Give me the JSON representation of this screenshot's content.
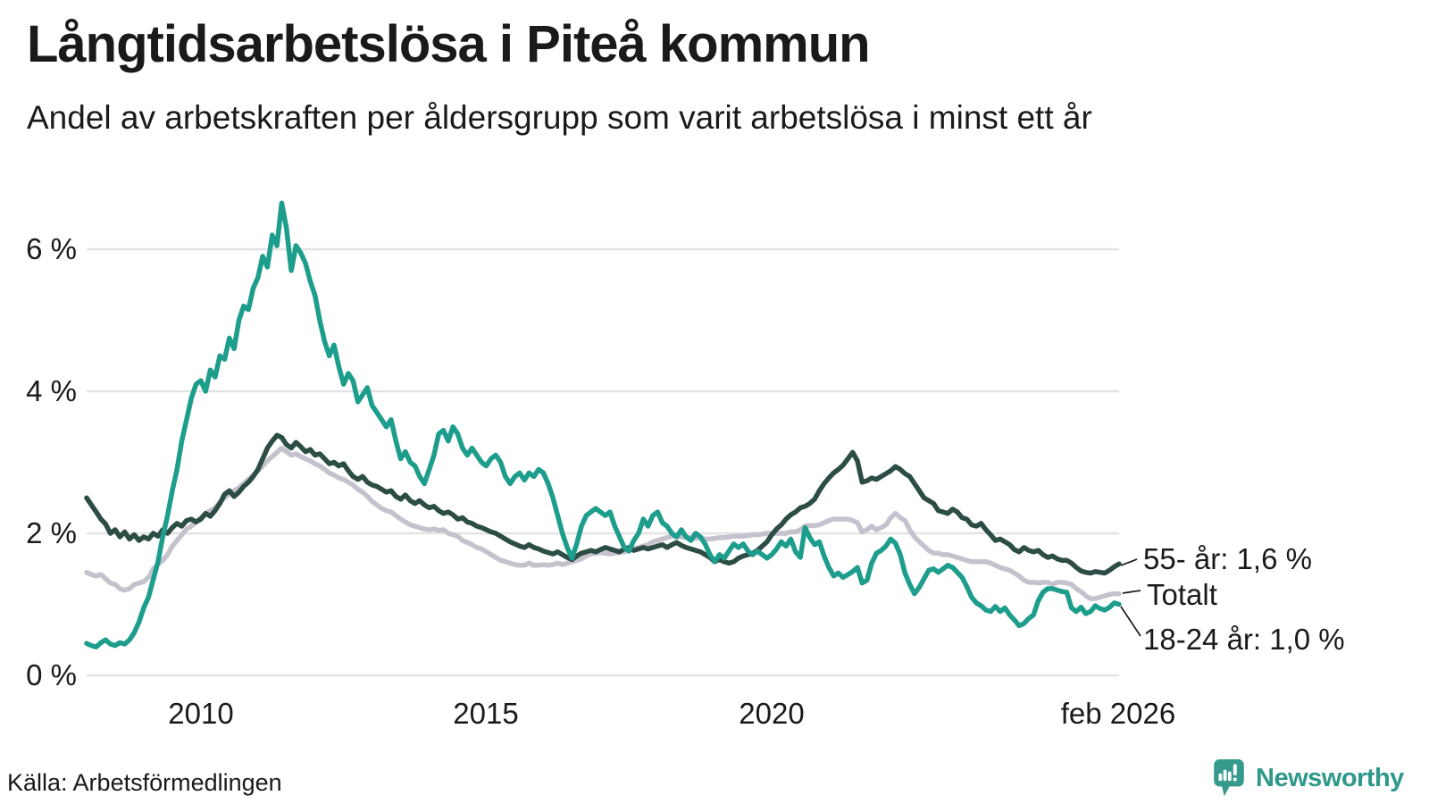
{
  "header": {
    "title": "Långtidsarbetslösa i Piteå kommun",
    "subtitle": "Andel av arbetskraften per åldersgrupp som varit arbetslösa i minst ett år"
  },
  "footer": {
    "source": "Källa: Arbetsförmedlingen",
    "brand": "Newsworthy"
  },
  "colors": {
    "teal": "#1d9d8b",
    "dark_green": "#2c4d45",
    "gray": "#c5c2ce",
    "gridline": "#e3e3e3",
    "text": "#1a1a1a",
    "brand_teal": "#2e988a"
  },
  "chart_data": {
    "type": "line",
    "title": "Långtidsarbetslösa i Piteå kommun",
    "subtitle": "Andel av arbetskraften per åldersgrupp som varit arbetslösa i minst ett år",
    "x_domain": [
      2008.0,
      2026.083
    ],
    "x_frequency": "monthly",
    "ylim": [
      0,
      6.9
    ],
    "grid": "horizontal",
    "y_ticks": [
      {
        "label": "0 %",
        "value": 0
      },
      {
        "label": "2 %",
        "value": 2
      },
      {
        "label": "4 %",
        "value": 4
      },
      {
        "label": "6 %",
        "value": 6
      }
    ],
    "x_ticks": [
      {
        "label": "2010",
        "t": 2010.0
      },
      {
        "label": "2015",
        "t": 2015.0
      },
      {
        "label": "2020",
        "t": 2020.0
      },
      {
        "label": "feb 2026",
        "t": 2026.083
      }
    ],
    "series": [
      {
        "id": "totalt",
        "name": "Totalt",
        "end_label": "Totalt",
        "end_value": 1.15,
        "color": "#c5c2ce",
        "values": [
          1.45,
          1.42,
          1.4,
          1.42,
          1.36,
          1.3,
          1.28,
          1.22,
          1.2,
          1.22,
          1.28,
          1.3,
          1.32,
          1.38,
          1.5,
          1.56,
          1.62,
          1.7,
          1.82,
          1.9,
          1.98,
          2.06,
          2.1,
          2.16,
          2.22,
          2.28,
          2.32,
          2.36,
          2.44,
          2.5,
          2.55,
          2.6,
          2.64,
          2.7,
          2.76,
          2.82,
          2.88,
          2.95,
          3.02,
          3.08,
          3.14,
          3.2,
          3.15,
          3.1,
          3.12,
          3.08,
          3.05,
          3.02,
          2.98,
          2.95,
          2.9,
          2.85,
          2.82,
          2.78,
          2.76,
          2.72,
          2.68,
          2.62,
          2.58,
          2.52,
          2.45,
          2.4,
          2.35,
          2.32,
          2.3,
          2.25,
          2.2,
          2.16,
          2.12,
          2.1,
          2.08,
          2.06,
          2.05,
          2.06,
          2.04,
          2.05,
          2.0,
          1.98,
          1.96,
          1.9,
          1.87,
          1.84,
          1.8,
          1.78,
          1.74,
          1.7,
          1.66,
          1.62,
          1.6,
          1.58,
          1.56,
          1.55,
          1.55,
          1.58,
          1.55,
          1.55,
          1.56,
          1.55,
          1.56,
          1.58,
          1.56,
          1.58,
          1.6,
          1.62,
          1.64,
          1.68,
          1.71,
          1.72,
          1.73,
          1.72,
          1.71,
          1.72,
          1.73,
          1.74,
          1.76,
          1.78,
          1.8,
          1.82,
          1.84,
          1.88,
          1.9,
          1.92,
          1.94,
          1.96,
          1.96,
          1.95,
          1.94,
          1.94,
          1.93,
          1.94,
          1.92,
          1.92,
          1.93,
          1.94,
          1.94,
          1.95,
          1.96,
          1.96,
          1.96,
          1.97,
          1.98,
          1.98,
          1.99,
          2.0,
          2.0,
          2.0,
          2.0,
          2.0,
          2.02,
          2.02,
          2.05,
          2.1,
          2.11,
          2.11,
          2.12,
          2.15,
          2.18,
          2.2,
          2.2,
          2.2,
          2.2,
          2.18,
          2.15,
          2.02,
          2.05,
          2.1,
          2.05,
          2.08,
          2.12,
          2.22,
          2.28,
          2.22,
          2.18,
          2.05,
          1.95,
          1.88,
          1.82,
          1.76,
          1.72,
          1.72,
          1.7,
          1.7,
          1.68,
          1.66,
          1.64,
          1.62,
          1.6,
          1.6,
          1.6,
          1.6,
          1.58,
          1.55,
          1.52,
          1.5,
          1.48,
          1.44,
          1.4,
          1.34,
          1.31,
          1.31,
          1.3,
          1.31,
          1.31,
          1.28,
          1.31,
          1.31,
          1.3,
          1.28,
          1.22,
          1.18,
          1.12,
          1.08,
          1.08,
          1.1,
          1.12,
          1.14,
          1.15,
          1.15
        ]
      },
      {
        "id": "55",
        "name": "55- år",
        "end_label": "55- år: 1,6 %",
        "end_value": 1.6,
        "color": "#2c4d45",
        "values": [
          2.5,
          2.4,
          2.3,
          2.2,
          2.13,
          2.0,
          2.05,
          1.95,
          2.02,
          1.92,
          1.98,
          1.9,
          1.95,
          1.92,
          2.0,
          1.96,
          2.05,
          2.0,
          2.08,
          2.14,
          2.1,
          2.18,
          2.2,
          2.16,
          2.2,
          2.28,
          2.24,
          2.32,
          2.42,
          2.55,
          2.6,
          2.52,
          2.58,
          2.66,
          2.72,
          2.8,
          2.9,
          3.05,
          3.2,
          3.3,
          3.38,
          3.35,
          3.25,
          3.2,
          3.28,
          3.22,
          3.15,
          3.18,
          3.1,
          3.12,
          3.05,
          2.98,
          3.0,
          2.95,
          2.98,
          2.88,
          2.8,
          2.76,
          2.8,
          2.72,
          2.68,
          2.66,
          2.62,
          2.58,
          2.6,
          2.52,
          2.48,
          2.54,
          2.46,
          2.42,
          2.46,
          2.4,
          2.36,
          2.38,
          2.32,
          2.28,
          2.3,
          2.26,
          2.2,
          2.22,
          2.16,
          2.14,
          2.1,
          2.08,
          2.05,
          2.02,
          2.0,
          1.96,
          1.92,
          1.88,
          1.85,
          1.82,
          1.8,
          1.84,
          1.8,
          1.78,
          1.75,
          1.73,
          1.71,
          1.74,
          1.7,
          1.66,
          1.63,
          1.68,
          1.72,
          1.74,
          1.76,
          1.74,
          1.77,
          1.8,
          1.78,
          1.76,
          1.74,
          1.78,
          1.8,
          1.76,
          1.78,
          1.8,
          1.78,
          1.8,
          1.82,
          1.84,
          1.8,
          1.84,
          1.87,
          1.83,
          1.8,
          1.78,
          1.76,
          1.74,
          1.7,
          1.66,
          1.6,
          1.63,
          1.6,
          1.58,
          1.6,
          1.65,
          1.68,
          1.7,
          1.72,
          1.76,
          1.82,
          1.88,
          1.98,
          2.06,
          2.12,
          2.2,
          2.26,
          2.3,
          2.36,
          2.38,
          2.42,
          2.48,
          2.6,
          2.7,
          2.78,
          2.85,
          2.9,
          2.96,
          3.05,
          3.14,
          3.02,
          2.72,
          2.74,
          2.78,
          2.76,
          2.8,
          2.84,
          2.88,
          2.94,
          2.9,
          2.84,
          2.8,
          2.7,
          2.6,
          2.5,
          2.46,
          2.42,
          2.32,
          2.3,
          2.28,
          2.34,
          2.3,
          2.22,
          2.2,
          2.12,
          2.1,
          2.14,
          2.05,
          1.98,
          1.9,
          1.92,
          1.88,
          1.84,
          1.77,
          1.74,
          1.8,
          1.76,
          1.74,
          1.76,
          1.7,
          1.66,
          1.68,
          1.64,
          1.62,
          1.62,
          1.58,
          1.52,
          1.47,
          1.45,
          1.44,
          1.46,
          1.45,
          1.44,
          1.48,
          1.53,
          1.57
        ]
      },
      {
        "id": "1824",
        "name": "18-24 år",
        "end_label": "18-24 år: 1,0 %",
        "end_value": 1.0,
        "color": "#1d9d8b",
        "values": [
          0.45,
          0.42,
          0.4,
          0.46,
          0.5,
          0.44,
          0.42,
          0.46,
          0.44,
          0.5,
          0.6,
          0.75,
          0.95,
          1.1,
          1.35,
          1.6,
          1.95,
          2.25,
          2.6,
          2.9,
          3.3,
          3.6,
          3.9,
          4.1,
          4.15,
          4.0,
          4.3,
          4.2,
          4.5,
          4.45,
          4.75,
          4.6,
          5.0,
          5.2,
          5.15,
          5.45,
          5.6,
          5.9,
          5.75,
          6.2,
          6.05,
          6.65,
          6.3,
          5.7,
          6.05,
          5.95,
          5.8,
          5.55,
          5.35,
          5.0,
          4.7,
          4.5,
          4.65,
          4.35,
          4.1,
          4.25,
          4.15,
          3.85,
          3.95,
          4.05,
          3.8,
          3.7,
          3.6,
          3.5,
          3.6,
          3.3,
          3.05,
          3.15,
          3.0,
          2.95,
          2.8,
          2.7,
          2.9,
          3.1,
          3.4,
          3.45,
          3.3,
          3.5,
          3.4,
          3.2,
          3.1,
          3.2,
          3.1,
          3.0,
          2.95,
          3.05,
          3.1,
          3.0,
          2.8,
          2.7,
          2.8,
          2.85,
          2.75,
          2.85,
          2.8,
          2.9,
          2.85,
          2.7,
          2.5,
          2.25,
          2.0,
          1.8,
          1.65,
          1.85,
          2.1,
          2.25,
          2.3,
          2.35,
          2.3,
          2.25,
          2.3,
          2.1,
          1.95,
          1.8,
          1.75,
          1.9,
          2.0,
          2.2,
          2.1,
          2.25,
          2.3,
          2.15,
          2.1,
          2.0,
          1.95,
          2.05,
          1.95,
          1.9,
          2.0,
          1.95,
          1.85,
          1.7,
          1.6,
          1.7,
          1.65,
          1.75,
          1.85,
          1.8,
          1.85,
          1.75,
          1.7,
          1.75,
          1.7,
          1.65,
          1.7,
          1.78,
          1.88,
          1.82,
          1.92,
          1.74,
          1.66,
          2.08,
          1.94,
          1.84,
          1.88,
          1.68,
          1.52,
          1.4,
          1.44,
          1.38,
          1.42,
          1.46,
          1.52,
          1.3,
          1.34,
          1.58,
          1.72,
          1.76,
          1.82,
          1.92,
          1.86,
          1.7,
          1.44,
          1.28,
          1.15,
          1.24,
          1.36,
          1.48,
          1.5,
          1.45,
          1.5,
          1.55,
          1.52,
          1.45,
          1.38,
          1.25,
          1.1,
          1.02,
          0.98,
          0.92,
          0.9,
          0.97,
          0.9,
          0.95,
          0.85,
          0.78,
          0.7,
          0.73,
          0.8,
          0.85,
          1.05,
          1.17,
          1.22,
          1.22,
          1.2,
          1.18,
          1.17,
          0.95,
          0.9,
          0.96,
          0.87,
          0.9,
          0.98,
          0.94,
          0.92,
          0.96,
          1.02,
          1.0
        ]
      }
    ]
  }
}
